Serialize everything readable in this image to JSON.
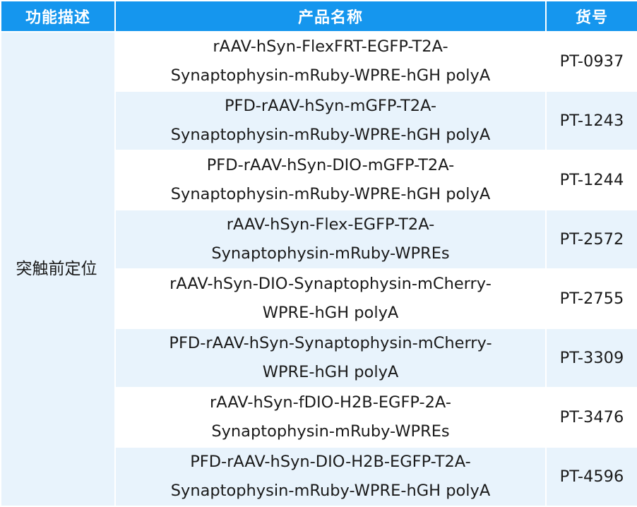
{
  "header": {
    "col_function": "功能描述",
    "col_product": "产品名称",
    "col_code": "货号"
  },
  "category": "突触前定位",
  "rows": [
    {
      "name_line1": "rAAV-hSyn-FlexFRT-EGFP-T2A-",
      "name_line2": "Synaptophysin-mRuby-WPRE-hGH polyA",
      "code": "PT-0937"
    },
    {
      "name_line1": "PFD-rAAV-hSyn-mGFP-T2A-",
      "name_line2": "Synaptophysin-mRuby-WPRE-hGH polyA",
      "code": "PT-1243"
    },
    {
      "name_line1": "PFD-rAAV-hSyn-DIO-mGFP-T2A-",
      "name_line2": "Synaptophysin-mRuby-WPRE-hGH polyA",
      "code": "PT-1244"
    },
    {
      "name_line1": "rAAV-hSyn-Flex-EGFP-T2A-",
      "name_line2": "Synaptophysin-mRuby-WPREs",
      "code": "PT-2572"
    },
    {
      "name_line1": "rAAV-hSyn-DIO-Synaptophysin-mCherry-",
      "name_line2": "WPRE-hGH polyA",
      "code": "PT-2755"
    },
    {
      "name_line1": "PFD-rAAV-hSyn-Synaptophysin-mCherry-",
      "name_line2": "WPRE-hGH polyA",
      "code": "PT-3309"
    },
    {
      "name_line1": "rAAV-hSyn-fDIO-H2B-EGFP-2A-",
      "name_line2": "Synaptophysin-mRuby-WPREs",
      "code": "PT-3476"
    },
    {
      "name_line1": "PFD-rAAV-hSyn-DIO-H2B-EGFP-T2A-",
      "name_line2": "Synaptophysin-mRuby-WPRE-hGH polyA",
      "code": "PT-4596"
    }
  ],
  "colors": {
    "header_bg": "#1596ee",
    "stripe_bg": "#e8f3fc",
    "text": "#1a1a1a"
  }
}
